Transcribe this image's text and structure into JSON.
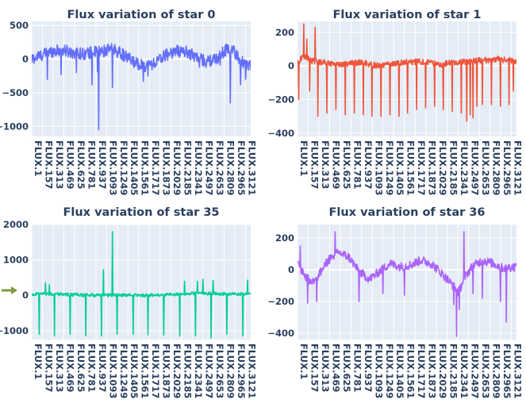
{
  "figure": {
    "plot_bg": "#e5ecf6",
    "grid_color": "#ffffff",
    "text_color": "#2a3f5f"
  },
  "chart_data": [
    {
      "type": "line",
      "title": "Flux variation of star 0",
      "series_name": "star 0",
      "color": "#636efa",
      "ylim": [
        -1150,
        560
      ],
      "yticks": [
        500,
        0,
        -500,
        -1000
      ],
      "ytick_labels": [
        "500",
        "0",
        "−500",
        "−1000"
      ],
      "x_categories": [
        "FLUX.1",
        "FLUX.157",
        "FLUX.313",
        "FLUX.469",
        "FLUX.625",
        "FLUX.781",
        "FLUX.937",
        "FLUX.1093",
        "FLUX.1249",
        "FLUX.1405",
        "FLUX.1561",
        "FLUX.1717",
        "FLUX.1873",
        "FLUX.2029",
        "FLUX.2185",
        "FLUX.2341",
        "FLUX.2497",
        "FLUX.2653",
        "FLUX.2809",
        "FLUX.2965",
        "FLUX.3121"
      ],
      "x_range": [
        1,
        3197
      ],
      "baseline": [
        [
          1,
          0
        ],
        [
          150,
          60
        ],
        [
          300,
          120
        ],
        [
          450,
          130
        ],
        [
          600,
          100
        ],
        [
          750,
          80
        ],
        [
          900,
          100
        ],
        [
          1050,
          120
        ],
        [
          1200,
          150
        ],
        [
          1350,
          50
        ],
        [
          1500,
          -50
        ],
        [
          1650,
          -100
        ],
        [
          1800,
          -60
        ],
        [
          1950,
          60
        ],
        [
          2100,
          120
        ],
        [
          2250,
          110
        ],
        [
          2400,
          40
        ],
        [
          2550,
          -40
        ],
        [
          2700,
          0
        ],
        [
          2850,
          160
        ],
        [
          2950,
          120
        ],
        [
          3050,
          -30
        ],
        [
          3197,
          -100
        ]
      ],
      "noise": 90,
      "spikes": [
        [
          230,
          -300
        ],
        [
          430,
          -230
        ],
        [
          880,
          -380
        ],
        [
          980,
          -1050
        ],
        [
          1180,
          -420
        ],
        [
          1630,
          -330
        ],
        [
          1700,
          -250
        ],
        [
          2450,
          -120
        ],
        [
          2750,
          -90
        ],
        [
          3050,
          -380
        ],
        [
          3120,
          -300
        ],
        [
          2550,
          -80
        ],
        [
          2900,
          -650
        ],
        [
          960,
          -190
        ],
        [
          650,
          -200
        ]
      ]
    },
    {
      "type": "line",
      "title": "Flux variation of star 1",
      "series_name": "star 1",
      "color": "#ef553b",
      "ylim": [
        -420,
        265
      ],
      "yticks": [
        200,
        0,
        -200,
        -400
      ],
      "ytick_labels": [
        "200",
        "0",
        "−200",
        "−400"
      ],
      "x_categories": [
        "FLUX.1",
        "FLUX.157",
        "FLUX.313",
        "FLUX.469",
        "FLUX.625",
        "FLUX.781",
        "FLUX.937",
        "FLUX.1093",
        "FLUX.1249",
        "FLUX.1405",
        "FLUX.1561",
        "FLUX.1717",
        "FLUX.1873",
        "FLUX.2029",
        "FLUX.2185",
        "FLUX.2341",
        "FLUX.2497",
        "FLUX.2653",
        "FLUX.2809",
        "FLUX.2965",
        "FLUX.3121"
      ],
      "x_range": [
        1,
        3197
      ],
      "baseline": [
        [
          1,
          20
        ],
        [
          100,
          60
        ],
        [
          200,
          30
        ],
        [
          400,
          20
        ],
        [
          600,
          10
        ],
        [
          900,
          20
        ],
        [
          1200,
          0
        ],
        [
          1500,
          20
        ],
        [
          1800,
          25
        ],
        [
          2100,
          10
        ],
        [
          2300,
          20
        ],
        [
          2600,
          30
        ],
        [
          2900,
          40
        ],
        [
          3197,
          30
        ]
      ],
      "noise": 18,
      "spikes": [
        [
          20,
          -200
        ],
        [
          90,
          250
        ],
        [
          140,
          160
        ],
        [
          180,
          -150
        ],
        [
          260,
          230
        ],
        [
          300,
          -300
        ],
        [
          430,
          -280
        ],
        [
          560,
          -260
        ],
        [
          700,
          -290
        ],
        [
          830,
          -280
        ],
        [
          960,
          -290
        ],
        [
          1090,
          -300
        ],
        [
          1220,
          -300
        ],
        [
          1350,
          -290
        ],
        [
          1480,
          -300
        ],
        [
          1610,
          -280
        ],
        [
          1740,
          -260
        ],
        [
          1870,
          -250
        ],
        [
          2000,
          -240
        ],
        [
          2130,
          -260
        ],
        [
          2260,
          -270
        ],
        [
          2390,
          -280
        ],
        [
          2470,
          -330
        ],
        [
          2520,
          -290
        ],
        [
          2560,
          -310
        ],
        [
          2620,
          -240
        ],
        [
          2700,
          -230
        ],
        [
          2830,
          -230
        ],
        [
          2960,
          -240
        ],
        [
          3090,
          -230
        ],
        [
          3150,
          -150
        ]
      ]
    },
    {
      "type": "line",
      "title": "Flux variation of star 35",
      "series_name": "star 35",
      "color": "#00cc96",
      "ylim": [
        -1250,
        2000
      ],
      "yticks": [
        2000,
        1000,
        0,
        -1000
      ],
      "ytick_labels": [
        "2000",
        "1000",
        "0",
        "−1000"
      ],
      "x_categories": [
        "FLUX.1",
        "FLUX.157",
        "FLUX.313",
        "FLUX.469",
        "FLUX.625",
        "FLUX.781",
        "FLUX.937",
        "FLUX.1093",
        "FLUX.1249",
        "FLUX.1405",
        "FLUX.1561",
        "FLUX.1717",
        "FLUX.1873",
        "FLUX.2029",
        "FLUX.2185",
        "FLUX.2341",
        "FLUX.2497",
        "FLUX.2653",
        "FLUX.2809",
        "FLUX.2965",
        "FLUX.3121"
      ],
      "x_range": [
        1,
        3197
      ],
      "baseline": [
        [
          1,
          20
        ],
        [
          200,
          40
        ],
        [
          400,
          30
        ],
        [
          700,
          10
        ],
        [
          1000,
          0
        ],
        [
          1300,
          10
        ],
        [
          1600,
          0
        ],
        [
          1900,
          10
        ],
        [
          2200,
          30
        ],
        [
          2400,
          60
        ],
        [
          2600,
          50
        ],
        [
          2800,
          40
        ],
        [
          3000,
          30
        ],
        [
          3197,
          50
        ]
      ],
      "noise": 45,
      "spikes": [
        [
          110,
          -1100
        ],
        [
          200,
          350
        ],
        [
          260,
          300
        ],
        [
          330,
          -1150
        ],
        [
          560,
          -1100
        ],
        [
          790,
          -1150
        ],
        [
          1020,
          -1150
        ],
        [
          1050,
          720
        ],
        [
          1180,
          1800
        ],
        [
          1250,
          -1100
        ],
        [
          1480,
          -1100
        ],
        [
          1700,
          -1120
        ],
        [
          1930,
          -1120
        ],
        [
          2160,
          -1150
        ],
        [
          2390,
          -1150
        ],
        [
          2420,
          400
        ],
        [
          2500,
          450
        ],
        [
          2620,
          -1200
        ],
        [
          2650,
          420
        ],
        [
          2850,
          -1100
        ],
        [
          3080,
          -1150
        ],
        [
          3150,
          430
        ],
        [
          2230,
          400
        ]
      ]
    },
    {
      "type": "line",
      "title": "Flux variation of star 36",
      "series_name": "star 36",
      "color": "#ab63fa",
      "ylim": [
        -440,
        285
      ],
      "yticks": [
        200,
        0,
        -200,
        -400
      ],
      "ytick_labels": [
        "200",
        "0",
        "−200",
        "−400"
      ],
      "x_categories": [
        "FLUX.1",
        "FLUX.157",
        "FLUX.313",
        "FLUX.469",
        "FLUX.625",
        "FLUX.781",
        "FLUX.937",
        "FLUX.1093",
        "FLUX.1249",
        "FLUX.1405",
        "FLUX.1561",
        "FLUX.1717",
        "FLUX.1873",
        "FLUX.2029",
        "FLUX.2185",
        "FLUX.2341",
        "FLUX.2497",
        "FLUX.2653",
        "FLUX.2809",
        "FLUX.2965",
        "FLUX.3121"
      ],
      "x_range": [
        1,
        3197
      ],
      "baseline": [
        [
          1,
          40
        ],
        [
          100,
          -30
        ],
        [
          200,
          -80
        ],
        [
          300,
          -40
        ],
        [
          450,
          60
        ],
        [
          600,
          110
        ],
        [
          750,
          80
        ],
        [
          900,
          -10
        ],
        [
          1050,
          -60
        ],
        [
          1200,
          -10
        ],
        [
          1350,
          40
        ],
        [
          1500,
          20
        ],
        [
          1650,
          30
        ],
        [
          1800,
          60
        ],
        [
          1950,
          40
        ],
        [
          2100,
          -20
        ],
        [
          2250,
          -90
        ],
        [
          2350,
          -140
        ],
        [
          2450,
          -40
        ],
        [
          2550,
          20
        ],
        [
          2700,
          60
        ],
        [
          2850,
          40
        ],
        [
          3000,
          10
        ],
        [
          3197,
          20
        ]
      ],
      "noise": 28,
      "spikes": [
        [
          40,
          150
        ],
        [
          150,
          -210
        ],
        [
          280,
          -200
        ],
        [
          550,
          240
        ],
        [
          900,
          -200
        ],
        [
          1250,
          -150
        ],
        [
          1560,
          -160
        ],
        [
          2280,
          -220
        ],
        [
          2320,
          -420
        ],
        [
          2360,
          -250
        ],
        [
          2430,
          240
        ],
        [
          2560,
          -150
        ],
        [
          2700,
          -180
        ],
        [
          2960,
          -200
        ],
        [
          3050,
          -330
        ]
      ]
    }
  ]
}
